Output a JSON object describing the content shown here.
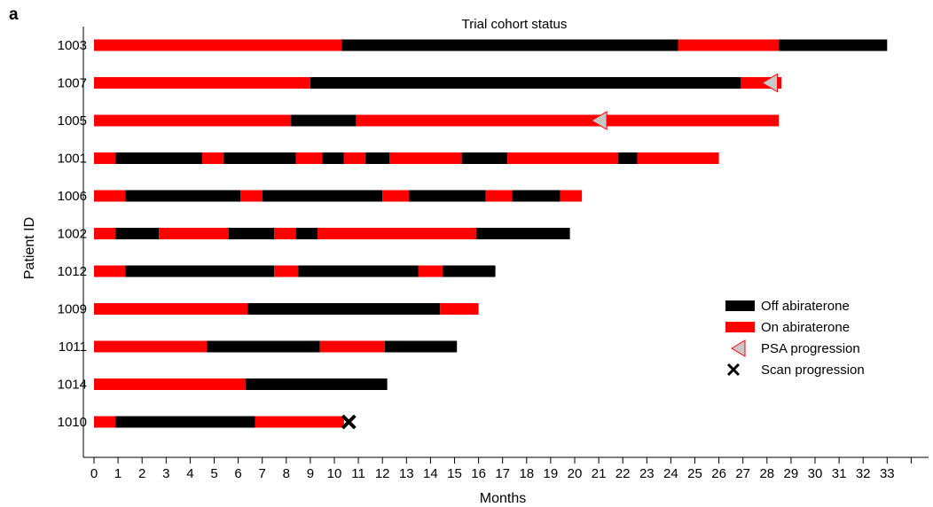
{
  "panel_letter": "a",
  "colors": {
    "off": "#000000",
    "on": "#ff0000",
    "psa_fill": "#c8c8c8",
    "psa_stroke": "#ff0000",
    "scan": "#000000"
  },
  "chart_data": {
    "type": "swimmer",
    "title": "Trial cohort status",
    "xlabel": "Months",
    "ylabel": "Patient ID",
    "xlim": [
      0,
      35
    ],
    "x_ticks": [
      0,
      1,
      2,
      3,
      4,
      5,
      6,
      7,
      8,
      9,
      10,
      11,
      12,
      13,
      14,
      15,
      16,
      17,
      18,
      19,
      20,
      21,
      22,
      23,
      24,
      25,
      26,
      27,
      28,
      29,
      30,
      31,
      32,
      33
    ],
    "grid": false,
    "legend_position": "right",
    "legend": [
      {
        "key": "off",
        "label": "Off abiraterone",
        "symbol": "black-rect"
      },
      {
        "key": "on",
        "label": "On abiraterone",
        "symbol": "red-rect"
      },
      {
        "key": "psa",
        "label": "PSA progression",
        "symbol": "grey-triangle"
      },
      {
        "key": "scan",
        "label": "Scan progression",
        "symbol": "black-x"
      }
    ],
    "patients": [
      {
        "id": "1003",
        "segments": [
          {
            "start": 0,
            "end": 10.3,
            "status": "on"
          },
          {
            "start": 10.3,
            "end": 24.3,
            "status": "off"
          },
          {
            "start": 24.3,
            "end": 28.5,
            "status": "on"
          },
          {
            "start": 28.5,
            "end": 33.0,
            "status": "off"
          }
        ]
      },
      {
        "id": "1007",
        "segments": [
          {
            "start": 0,
            "end": 9.0,
            "status": "on"
          },
          {
            "start": 9.0,
            "end": 26.9,
            "status": "off"
          },
          {
            "start": 26.9,
            "end": 28.6,
            "status": "on"
          }
        ],
        "psa_progression": 28.1
      },
      {
        "id": "1005",
        "segments": [
          {
            "start": 0,
            "end": 8.2,
            "status": "on"
          },
          {
            "start": 8.2,
            "end": 10.9,
            "status": "off"
          },
          {
            "start": 10.9,
            "end": 28.5,
            "status": "on"
          }
        ],
        "psa_progression": 21.0
      },
      {
        "id": "1001",
        "segments": [
          {
            "start": 0,
            "end": 0.9,
            "status": "on"
          },
          {
            "start": 0.9,
            "end": 4.5,
            "status": "off"
          },
          {
            "start": 4.5,
            "end": 5.4,
            "status": "on"
          },
          {
            "start": 5.4,
            "end": 8.4,
            "status": "off"
          },
          {
            "start": 8.4,
            "end": 9.5,
            "status": "on"
          },
          {
            "start": 9.5,
            "end": 10.4,
            "status": "off"
          },
          {
            "start": 10.4,
            "end": 11.3,
            "status": "on"
          },
          {
            "start": 11.3,
            "end": 12.3,
            "status": "off"
          },
          {
            "start": 12.3,
            "end": 15.3,
            "status": "on"
          },
          {
            "start": 15.3,
            "end": 17.2,
            "status": "off"
          },
          {
            "start": 17.2,
            "end": 21.8,
            "status": "on"
          },
          {
            "start": 21.8,
            "end": 22.6,
            "status": "off"
          },
          {
            "start": 22.6,
            "end": 26.0,
            "status": "on"
          }
        ]
      },
      {
        "id": "1006",
        "segments": [
          {
            "start": 0,
            "end": 1.3,
            "status": "on"
          },
          {
            "start": 1.3,
            "end": 6.1,
            "status": "off"
          },
          {
            "start": 6.1,
            "end": 7.0,
            "status": "on"
          },
          {
            "start": 7.0,
            "end": 12.0,
            "status": "off"
          },
          {
            "start": 12.0,
            "end": 13.1,
            "status": "on"
          },
          {
            "start": 13.1,
            "end": 16.3,
            "status": "off"
          },
          {
            "start": 16.3,
            "end": 17.4,
            "status": "on"
          },
          {
            "start": 17.4,
            "end": 19.4,
            "status": "off"
          },
          {
            "start": 19.4,
            "end": 20.3,
            "status": "on"
          }
        ]
      },
      {
        "id": "1002",
        "segments": [
          {
            "start": 0,
            "end": 0.9,
            "status": "on"
          },
          {
            "start": 0.9,
            "end": 2.7,
            "status": "off"
          },
          {
            "start": 2.7,
            "end": 5.6,
            "status": "on"
          },
          {
            "start": 5.6,
            "end": 7.5,
            "status": "off"
          },
          {
            "start": 7.5,
            "end": 8.4,
            "status": "on"
          },
          {
            "start": 8.4,
            "end": 9.3,
            "status": "off"
          },
          {
            "start": 9.3,
            "end": 15.9,
            "status": "on"
          },
          {
            "start": 15.9,
            "end": 19.8,
            "status": "off"
          }
        ]
      },
      {
        "id": "1012",
        "segments": [
          {
            "start": 0,
            "end": 1.3,
            "status": "on"
          },
          {
            "start": 1.3,
            "end": 7.5,
            "status": "off"
          },
          {
            "start": 7.5,
            "end": 8.5,
            "status": "on"
          },
          {
            "start": 8.5,
            "end": 13.5,
            "status": "off"
          },
          {
            "start": 13.5,
            "end": 14.5,
            "status": "on"
          },
          {
            "start": 14.5,
            "end": 16.7,
            "status": "off"
          }
        ]
      },
      {
        "id": "1009",
        "segments": [
          {
            "start": 0,
            "end": 6.4,
            "status": "on"
          },
          {
            "start": 6.4,
            "end": 14.4,
            "status": "off"
          },
          {
            "start": 14.4,
            "end": 16.0,
            "status": "on"
          }
        ]
      },
      {
        "id": "1011",
        "segments": [
          {
            "start": 0,
            "end": 4.7,
            "status": "on"
          },
          {
            "start": 4.7,
            "end": 9.4,
            "status": "off"
          },
          {
            "start": 9.4,
            "end": 12.1,
            "status": "on"
          },
          {
            "start": 12.1,
            "end": 15.1,
            "status": "off"
          }
        ]
      },
      {
        "id": "1014",
        "segments": [
          {
            "start": 0,
            "end": 6.3,
            "status": "on"
          },
          {
            "start": 6.3,
            "end": 12.2,
            "status": "off"
          }
        ]
      },
      {
        "id": "1010",
        "segments": [
          {
            "start": 0,
            "end": 0.9,
            "status": "on"
          },
          {
            "start": 0.9,
            "end": 6.7,
            "status": "off"
          },
          {
            "start": 6.7,
            "end": 10.4,
            "status": "on"
          }
        ],
        "scan_progression": 10.6
      }
    ]
  }
}
